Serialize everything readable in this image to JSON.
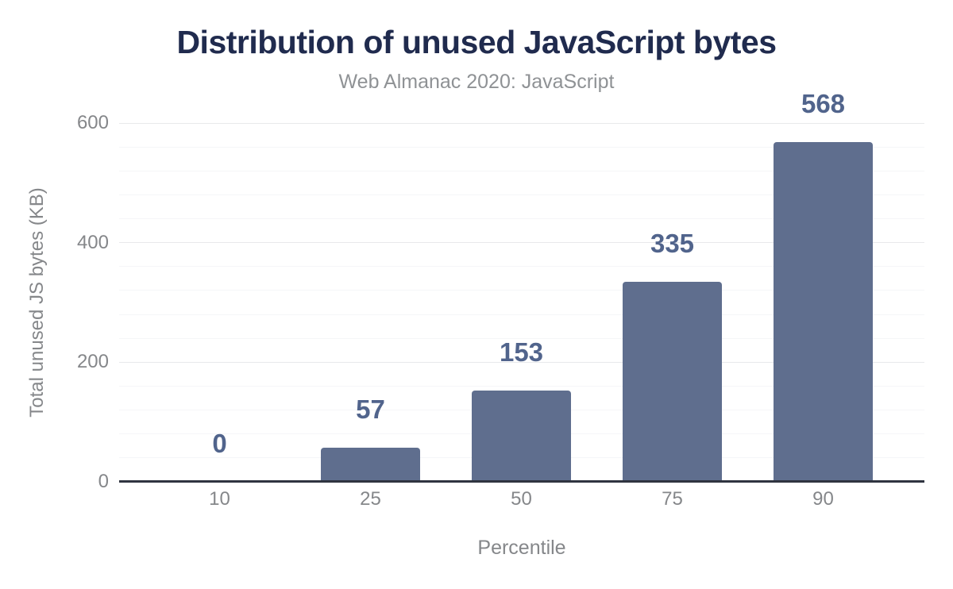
{
  "chart_data": {
    "type": "bar",
    "title": "Distribution of unused JavaScript bytes",
    "subtitle": "Web Almanac 2020: JavaScript",
    "xlabel": "Percentile",
    "ylabel": "Total unused JS bytes (KB)",
    "categories": [
      "10",
      "25",
      "50",
      "75",
      "90"
    ],
    "values": [
      0,
      57,
      153,
      335,
      568
    ],
    "value_labels": [
      "0",
      "57",
      "153",
      "335",
      "568"
    ],
    "ylim": [
      0,
      600
    ],
    "yticks": [
      0,
      200,
      400,
      600
    ],
    "ytick_labels": [
      "0",
      "200",
      "400",
      "600"
    ],
    "minor_grid_step": 40,
    "grid": "on",
    "legend": "none"
  },
  "colors": {
    "background": "#ffffff",
    "title": "#202b4e",
    "subtitle": "#8f9295",
    "axis_text": "#85878a",
    "bar": "#5f6e8e",
    "value_label": "#51648c",
    "major_gridline": "#e8e9eb",
    "minor_gridline": "#f5f6f8",
    "baseline": "#2f3440"
  }
}
